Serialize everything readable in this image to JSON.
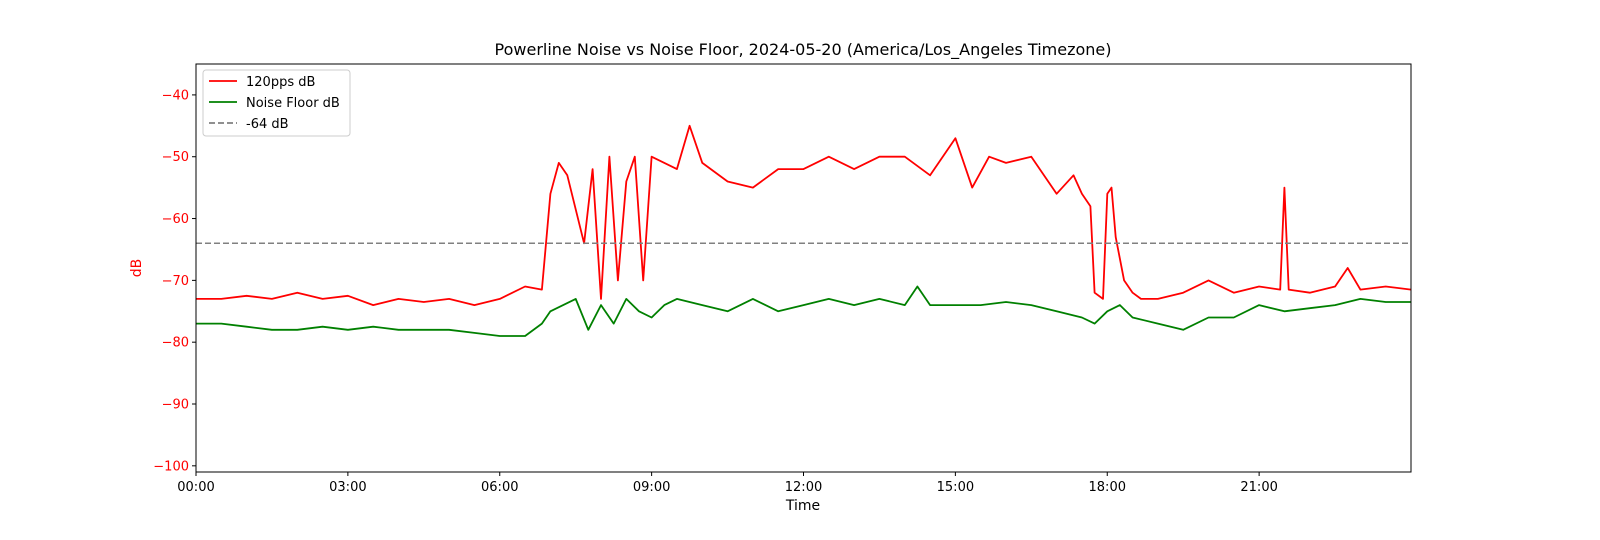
{
  "chart_data": {
    "type": "line",
    "title": "Powerline Noise vs Noise Floor, 2024-05-20 (America/Los_Angeles Timezone)",
    "xlabel": "Time",
    "ylabel": "dB",
    "xlim": [
      "00:00",
      "24:00"
    ],
    "ylim": [
      -101,
      -35
    ],
    "x_ticks": [
      "00:00",
      "03:00",
      "06:00",
      "09:00",
      "12:00",
      "15:00",
      "18:00",
      "21:00"
    ],
    "y_ticks": [
      -40,
      -50,
      -60,
      -70,
      -80,
      -90,
      -100
    ],
    "y_tick_labels": [
      "−40",
      "−50",
      "−60",
      "−70",
      "−80",
      "−90",
      "−100"
    ],
    "grid": false,
    "legend_position": "top-left",
    "ylabel_color": "#ff0000",
    "series": [
      {
        "name": "120pps dB",
        "color": "#ff0000",
        "style": "solid",
        "x": [
          "00:00",
          "00:30",
          "01:00",
          "01:30",
          "02:00",
          "02:30",
          "03:00",
          "03:30",
          "04:00",
          "04:30",
          "05:00",
          "05:30",
          "06:00",
          "06:30",
          "06:50",
          "07:00",
          "07:10",
          "07:20",
          "07:40",
          "07:50",
          "08:00",
          "08:10",
          "08:20",
          "08:30",
          "08:40",
          "08:50",
          "09:00",
          "09:30",
          "09:45",
          "10:00",
          "10:30",
          "11:00",
          "11:30",
          "12:00",
          "12:30",
          "13:00",
          "13:30",
          "14:00",
          "14:30",
          "15:00",
          "15:20",
          "15:40",
          "16:00",
          "16:30",
          "17:00",
          "17:20",
          "17:30",
          "17:40",
          "17:45",
          "17:55",
          "18:00",
          "18:05",
          "18:10",
          "18:20",
          "18:30",
          "18:40",
          "19:00",
          "19:30",
          "20:00",
          "20:30",
          "21:00",
          "21:25",
          "21:30",
          "21:35",
          "22:00",
          "22:30",
          "22:45",
          "23:00",
          "23:30",
          "24:00"
        ],
        "values": [
          -73,
          -73,
          -72.5,
          -73,
          -72,
          -73,
          -72.5,
          -74,
          -73,
          -73.5,
          -73,
          -74,
          -73,
          -71,
          -71.5,
          -56,
          -51,
          -53,
          -64,
          -52,
          -73,
          -50,
          -70,
          -54,
          -50,
          -70,
          -50,
          -52,
          -45,
          -51,
          -54,
          -55,
          -52,
          -52,
          -50,
          -52,
          -50,
          -50,
          -53,
          -47,
          -55,
          -50,
          -51,
          -50,
          -56,
          -53,
          -56,
          -58,
          -72,
          -73,
          -56,
          -55,
          -63,
          -70,
          -72,
          -73,
          -73,
          -72,
          -70,
          -72,
          -71,
          -71.5,
          -55,
          -71.5,
          -72,
          -71,
          -68,
          -71.5,
          -71,
          -71.5
        ]
      },
      {
        "name": "Noise Floor dB",
        "color": "#008000",
        "style": "solid",
        "x": [
          "00:00",
          "00:30",
          "01:00",
          "01:30",
          "02:00",
          "02:30",
          "03:00",
          "03:30",
          "04:00",
          "04:30",
          "05:00",
          "05:30",
          "06:00",
          "06:30",
          "06:50",
          "07:00",
          "07:30",
          "07:45",
          "08:00",
          "08:15",
          "08:30",
          "08:45",
          "09:00",
          "09:15",
          "09:30",
          "10:00",
          "10:30",
          "11:00",
          "11:30",
          "12:00",
          "12:30",
          "13:00",
          "13:30",
          "14:00",
          "14:15",
          "14:30",
          "15:00",
          "15:30",
          "16:00",
          "16:30",
          "17:00",
          "17:30",
          "17:45",
          "18:00",
          "18:15",
          "18:30",
          "19:00",
          "19:30",
          "20:00",
          "20:30",
          "21:00",
          "21:30",
          "22:00",
          "22:30",
          "23:00",
          "23:30",
          "24:00"
        ],
        "values": [
          -77,
          -77,
          -77.5,
          -78,
          -78,
          -77.5,
          -78,
          -77.5,
          -78,
          -78,
          -78,
          -78.5,
          -79,
          -79,
          -77,
          -75,
          -73,
          -78,
          -74,
          -77,
          -73,
          -75,
          -76,
          -74,
          -73,
          -74,
          -75,
          -73,
          -75,
          -74,
          -73,
          -74,
          -73,
          -74,
          -71,
          -74,
          -74,
          -74,
          -73.5,
          -74,
          -75,
          -76,
          -77,
          -75,
          -74,
          -76,
          -77,
          -78,
          -76,
          -76,
          -74,
          -75,
          -74.5,
          -74,
          -73,
          -73.5,
          -73.5
        ]
      },
      {
        "name": "-64 dB",
        "color": "#808080",
        "style": "dashed",
        "x": [
          "00:00",
          "24:00"
        ],
        "values": [
          -64,
          -64
        ]
      }
    ]
  }
}
